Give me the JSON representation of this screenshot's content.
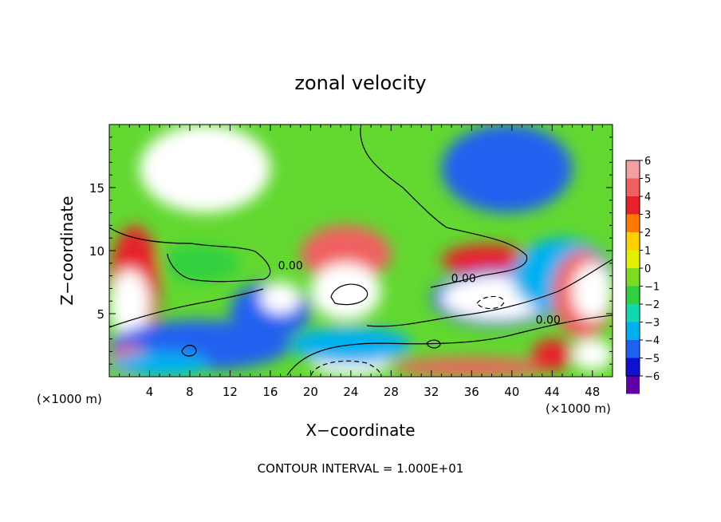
{
  "chart_data": {
    "type": "heatmap",
    "title": "zonal velocity",
    "xlabel": "X−coordinate",
    "ylabel": "Z−coordinate",
    "x_units": "(×1000 m)",
    "z_units": "(×1000 m)",
    "xlim": [
      0,
      50
    ],
    "ylim": [
      0,
      20
    ],
    "x_ticks": [
      "4",
      "8",
      "12",
      "16",
      "20",
      "24",
      "28",
      "32",
      "36",
      "40",
      "44",
      "48"
    ],
    "x_tick_values": [
      4,
      8,
      12,
      16,
      20,
      24,
      28,
      32,
      36,
      40,
      44,
      48
    ],
    "y_ticks": [
      "5",
      "10",
      "15"
    ],
    "y_tick_values": [
      5,
      10,
      15
    ],
    "colorbar": {
      "labels": [
        "6",
        "5",
        "4",
        "3",
        "2",
        "1",
        "0",
        "−1",
        "−2",
        "−3",
        "−4",
        "−5",
        "−6"
      ],
      "values": [
        6,
        5,
        4,
        3,
        2,
        1,
        0,
        -1,
        -2,
        -3,
        -4,
        -5,
        -6
      ],
      "colors": [
        "#f4a0a0",
        "#f06060",
        "#e8202a",
        "#ff7a00",
        "#ffd000",
        "#e0f000",
        "#7cdc20",
        "#30d040",
        "#10d8b0",
        "#00b0f0",
        "#2060f0",
        "#1010d0",
        "#6000a8"
      ]
    },
    "contour_labels": [
      {
        "text": "0.00",
        "x": 18.0,
        "z": 8.5
      },
      {
        "text": "0.00",
        "x": 35.2,
        "z": 7.5
      },
      {
        "text": "0.00",
        "x": 43.6,
        "z": 4.2
      }
    ],
    "regions": [
      {
        "value": 7,
        "x": [
          3,
          16
        ],
        "z": [
          13,
          20
        ]
      },
      {
        "value": 4,
        "x": [
          0,
          5
        ],
        "z": [
          2.5,
          12
        ]
      },
      {
        "value": 7,
        "x": [
          0,
          4
        ],
        "z": [
          3,
          8.5
        ]
      },
      {
        "value": -1.5,
        "x": [
          5,
          13
        ],
        "z": [
          7.5,
          10.5
        ]
      },
      {
        "value": 5,
        "x": [
          19,
          28
        ],
        "z": [
          7.5,
          12
        ]
      },
      {
        "value": 7,
        "x": [
          20,
          27
        ],
        "z": [
          4.5,
          9
        ]
      },
      {
        "value": -4,
        "x": [
          12,
          20
        ],
        "z": [
          3,
          7.5
        ]
      },
      {
        "value": 7,
        "x": [
          15,
          19
        ],
        "z": [
          5,
          7.5
        ]
      },
      {
        "value": -4,
        "x": [
          0,
          18
        ],
        "z": [
          0.5,
          4.5
        ]
      },
      {
        "value": 4,
        "x": [
          33,
          42
        ],
        "z": [
          8,
          10.5
        ]
      },
      {
        "value": -4,
        "x": [
          32,
          45
        ],
        "z": [
          4,
          8.5
        ]
      },
      {
        "value": 7,
        "x": [
          33,
          44
        ],
        "z": [
          4.5,
          8
        ]
      },
      {
        "value": -4.5,
        "x": [
          33,
          46
        ],
        "z": [
          13,
          20
        ]
      },
      {
        "value": -3,
        "x": [
          40,
          50
        ],
        "z": [
          5,
          11
        ]
      },
      {
        "value": 5,
        "x": [
          44,
          50
        ],
        "z": [
          3,
          10
        ]
      },
      {
        "value": 7,
        "x": [
          46,
          50
        ],
        "z": [
          4.5,
          9
        ]
      },
      {
        "value": 7,
        "x": [
          20,
          28
        ],
        "z": [
          0,
          2.5
        ]
      },
      {
        "value": 5,
        "x": [
          28,
          44
        ],
        "z": [
          0,
          1.5
        ]
      },
      {
        "value": -3,
        "x": [
          18,
          30
        ],
        "z": [
          1,
          4
        ]
      },
      {
        "value": 5,
        "x": [
          0,
          4
        ],
        "z": [
          0,
          2.5
        ]
      },
      {
        "value": 4,
        "x": [
          42,
          46
        ],
        "z": [
          0.5,
          3
        ]
      },
      {
        "value": 7,
        "x": [
          46,
          50
        ],
        "z": [
          0.5,
          3
        ]
      },
      {
        "value": -3,
        "x": [
          0,
          10
        ],
        "z": [
          0,
          2
        ]
      }
    ]
  },
  "footer": {
    "contour_interval": "CONTOUR INTERVAL = 1.000E+01"
  }
}
